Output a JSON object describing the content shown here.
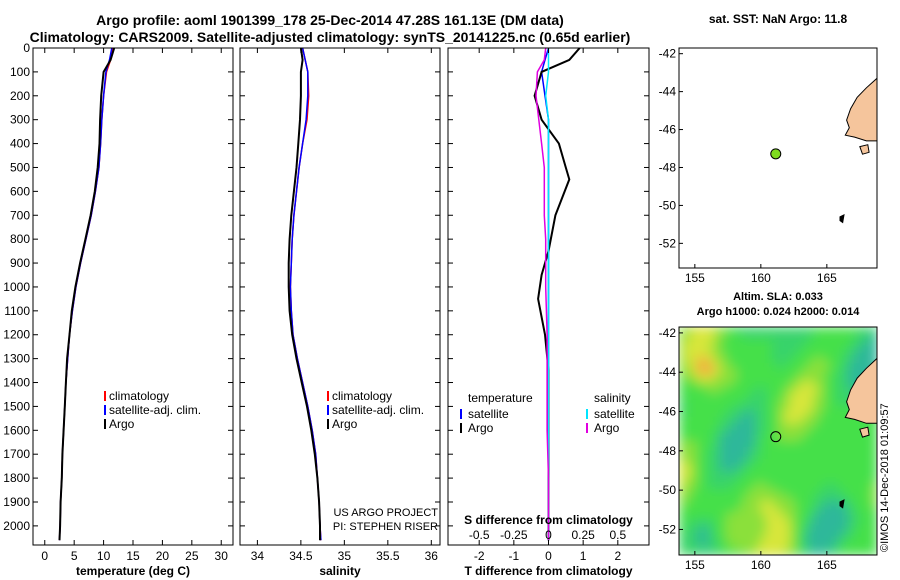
{
  "header": {
    "line1": "Argo profile: aoml 1901399_178 25-Dec-2014 47.28S 161.13E (DM data)",
    "line2": "Climatology: CARS2009. Satellite-adjusted climatology: synTS_20141225.nc (0.65d earlier)"
  },
  "sst_header": "sat. SST: NaN Argo: 11.8",
  "sla_header": {
    "line1": "Altim. SLA: 0.033",
    "line2": "Argo h1000: 0.024 h2000: 0.014"
  },
  "project": {
    "line1": "US ARGO PROJECT",
    "line2": "PI: STEPHEN RISER"
  },
  "stamp": "©IMOS 14-Dec-2018 01:09:57",
  "colors": {
    "climatology": "#ff0000",
    "satellite": "#0000ff",
    "argo": "#000000",
    "sal_sat": "#00e5ff",
    "sal_argo": "#e000e0",
    "land": "#f5c59c",
    "dot": "#7fdc1f"
  },
  "chart_data": [
    {
      "type": "line",
      "name": "temperature",
      "xlabel": "temperature (deg C)",
      "xlim": [
        -2,
        32
      ],
      "xticks": [
        "0",
        "5",
        "10",
        "15",
        "20",
        "25",
        "30"
      ],
      "ylim": [
        2080,
        0
      ],
      "yticks": [
        "0",
        "100",
        "200",
        "300",
        "400",
        "500",
        "600",
        "700",
        "800",
        "900",
        "1000",
        "1100",
        "1200",
        "1300",
        "1400",
        "1500",
        "1600",
        "1700",
        "1800",
        "1900",
        "2000"
      ],
      "legend": [
        "climatology",
        "satellite-adj. clim.",
        "Argo"
      ],
      "series": [
        {
          "name": "climatology",
          "color": "#ff0000",
          "points": [
            [
              11.5,
              0
            ],
            [
              11.2,
              50
            ],
            [
              10.5,
              100
            ],
            [
              10.0,
              200
            ],
            [
              9.7,
              300
            ],
            [
              9.5,
              400
            ],
            [
              9.2,
              500
            ],
            [
              8.6,
              600
            ],
            [
              7.9,
              700
            ],
            [
              7.0,
              800
            ],
            [
              6.1,
              900
            ],
            [
              5.3,
              1000
            ],
            [
              4.7,
              1100
            ],
            [
              4.2,
              1200
            ],
            [
              3.9,
              1300
            ],
            [
              3.6,
              1400
            ],
            [
              3.4,
              1500
            ],
            [
              3.2,
              1600
            ],
            [
              3.0,
              1700
            ],
            [
              2.9,
              1800
            ],
            [
              2.7,
              1900
            ],
            [
              2.6,
              2000
            ],
            [
              2.5,
              2060
            ]
          ]
        },
        {
          "name": "satellite-adj. clim.",
          "color": "#0000ff",
          "points": [
            [
              11.4,
              0
            ],
            [
              11.0,
              50
            ],
            [
              10.4,
              100
            ],
            [
              10.0,
              200
            ],
            [
              9.7,
              300
            ],
            [
              9.5,
              400
            ],
            [
              9.2,
              500
            ],
            [
              8.6,
              600
            ],
            [
              7.9,
              700
            ],
            [
              7.0,
              800
            ],
            [
              6.1,
              900
            ],
            [
              5.3,
              1000
            ],
            [
              4.7,
              1100
            ],
            [
              4.2,
              1200
            ],
            [
              3.9,
              1300
            ],
            [
              3.6,
              1400
            ],
            [
              3.4,
              1500
            ],
            [
              3.2,
              1600
            ],
            [
              3.0,
              1700
            ],
            [
              2.9,
              1800
            ],
            [
              2.7,
              1900
            ],
            [
              2.6,
              2000
            ],
            [
              2.5,
              2060
            ]
          ]
        },
        {
          "name": "Argo",
          "color": "#000000",
          "points": [
            [
              11.8,
              0
            ],
            [
              11.2,
              50
            ],
            [
              10.0,
              100
            ],
            [
              9.6,
              200
            ],
            [
              9.4,
              300
            ],
            [
              9.3,
              400
            ],
            [
              9.0,
              500
            ],
            [
              8.5,
              600
            ],
            [
              7.8,
              700
            ],
            [
              6.9,
              800
            ],
            [
              6.0,
              900
            ],
            [
              5.2,
              1000
            ],
            [
              4.6,
              1100
            ],
            [
              4.2,
              1200
            ],
            [
              3.8,
              1300
            ],
            [
              3.6,
              1400
            ],
            [
              3.4,
              1500
            ],
            [
              3.2,
              1600
            ],
            [
              3.0,
              1700
            ],
            [
              2.9,
              1800
            ],
            [
              2.7,
              1900
            ],
            [
              2.6,
              2000
            ],
            [
              2.5,
              2060
            ]
          ]
        }
      ]
    },
    {
      "type": "line",
      "name": "salinity",
      "xlabel": "salinity",
      "xlim": [
        33.8,
        36.1
      ],
      "xticks": [
        "34",
        "34.5",
        "35",
        "35.5",
        "36"
      ],
      "ylim": [
        2080,
        0
      ],
      "legend": [
        "climatology",
        "satellite-adj. clim.",
        "Argo"
      ],
      "series": [
        {
          "name": "climatology",
          "color": "#ff0000",
          "points": [
            [
              34.52,
              0
            ],
            [
              34.55,
              50
            ],
            [
              34.58,
              100
            ],
            [
              34.59,
              200
            ],
            [
              34.57,
              300
            ],
            [
              34.52,
              400
            ],
            [
              34.48,
              500
            ],
            [
              34.45,
              600
            ],
            [
              34.42,
              700
            ],
            [
              34.4,
              800
            ],
            [
              34.39,
              900
            ],
            [
              34.38,
              1000
            ],
            [
              34.39,
              1100
            ],
            [
              34.41,
              1200
            ],
            [
              34.46,
              1300
            ],
            [
              34.52,
              1400
            ],
            [
              34.58,
              1500
            ],
            [
              34.63,
              1600
            ],
            [
              34.67,
              1700
            ],
            [
              34.69,
              1800
            ],
            [
              34.71,
              1900
            ],
            [
              34.72,
              2000
            ],
            [
              34.73,
              2060
            ]
          ]
        },
        {
          "name": "satellite-adj. clim.",
          "color": "#0000ff",
          "points": [
            [
              34.52,
              0
            ],
            [
              34.55,
              50
            ],
            [
              34.58,
              100
            ],
            [
              34.58,
              200
            ],
            [
              34.56,
              300
            ],
            [
              34.52,
              400
            ],
            [
              34.48,
              500
            ],
            [
              34.45,
              600
            ],
            [
              34.42,
              700
            ],
            [
              34.4,
              800
            ],
            [
              34.39,
              900
            ],
            [
              34.38,
              1000
            ],
            [
              34.39,
              1100
            ],
            [
              34.41,
              1200
            ],
            [
              34.46,
              1300
            ],
            [
              34.52,
              1400
            ],
            [
              34.58,
              1500
            ],
            [
              34.63,
              1600
            ],
            [
              34.67,
              1700
            ],
            [
              34.69,
              1800
            ],
            [
              34.71,
              1900
            ],
            [
              34.72,
              2000
            ],
            [
              34.73,
              2060
            ]
          ]
        },
        {
          "name": "Argo",
          "color": "#000000",
          "points": [
            [
              34.5,
              0
            ],
            [
              34.52,
              50
            ],
            [
              34.5,
              100
            ],
            [
              34.5,
              200
            ],
            [
              34.49,
              300
            ],
            [
              34.47,
              400
            ],
            [
              34.45,
              500
            ],
            [
              34.42,
              600
            ],
            [
              34.39,
              700
            ],
            [
              34.37,
              800
            ],
            [
              34.36,
              900
            ],
            [
              34.36,
              1000
            ],
            [
              34.37,
              1100
            ],
            [
              34.4,
              1200
            ],
            [
              34.45,
              1300
            ],
            [
              34.51,
              1400
            ],
            [
              34.57,
              1500
            ],
            [
              34.62,
              1600
            ],
            [
              34.66,
              1700
            ],
            [
              34.69,
              1800
            ],
            [
              34.71,
              1900
            ],
            [
              34.72,
              2000
            ],
            [
              34.72,
              2060
            ]
          ]
        }
      ]
    },
    {
      "type": "line",
      "name": "difference",
      "xlabel": "T difference from climatology",
      "xlim": [
        -2.9,
        2.9
      ],
      "xticks": [
        "-2",
        "-1",
        "0",
        "1",
        "2"
      ],
      "top_label": "S difference from climatology",
      "top_ticks": [
        "-0.5",
        "-0.25",
        "0",
        "0.25",
        "0.5"
      ],
      "ylim": [
        2080,
        0
      ],
      "legend_left_title": "temperature",
      "legend_left": [
        "satellite",
        "Argo"
      ],
      "legend_right_title": "salinity",
      "legend_right": [
        "satellite",
        "Argo"
      ],
      "series": [
        {
          "name": "temperature satellite",
          "color": "#0000ff",
          "points": [
            [
              0.0,
              0
            ],
            [
              -0.1,
              50
            ],
            [
              -0.2,
              100
            ],
            [
              -0.1,
              200
            ],
            [
              0.0,
              300
            ],
            [
              0.0,
              400
            ],
            [
              0.0,
              500
            ],
            [
              0.0,
              600
            ],
            [
              0.0,
              700
            ],
            [
              0.0,
              800
            ],
            [
              0.0,
              900
            ],
            [
              0.0,
              1000
            ],
            [
              0.0,
              1200
            ],
            [
              0.0,
              1400
            ],
            [
              0.0,
              1600
            ],
            [
              0.0,
              1800
            ],
            [
              0.0,
              2000
            ],
            [
              0.0,
              2060
            ]
          ]
        },
        {
          "name": "temperature Argo",
          "color": "#000000",
          "points": [
            [
              0.9,
              0
            ],
            [
              0.6,
              50
            ],
            [
              -0.2,
              100
            ],
            [
              -0.4,
              200
            ],
            [
              -0.2,
              300
            ],
            [
              0.3,
              400
            ],
            [
              0.5,
              500
            ],
            [
              0.6,
              550
            ],
            [
              0.2,
              700
            ],
            [
              0.0,
              850
            ],
            [
              -0.2,
              950
            ],
            [
              -0.3,
              1050
            ],
            [
              -0.1,
              1200
            ],
            [
              0.0,
              1350
            ],
            [
              0.0,
              1500
            ],
            [
              0.0,
              1700
            ],
            [
              0.0,
              1900
            ],
            [
              0.0,
              2060
            ]
          ]
        },
        {
          "name": "salinity satellite",
          "color": "#00e5ff",
          "points": [
            [
              0.0,
              0
            ],
            [
              0.0,
              100
            ],
            [
              -0.02,
              200
            ],
            [
              0.0,
              300
            ],
            [
              0.0,
              500
            ],
            [
              0.0,
              800
            ],
            [
              0.0,
              1200
            ],
            [
              0.0,
              1600
            ],
            [
              0.0,
              2000
            ],
            [
              0.0,
              2060
            ]
          ]
        },
        {
          "name": "salinity Argo",
          "color": "#e000e0",
          "points": [
            [
              -0.02,
              0
            ],
            [
              -0.03,
              50
            ],
            [
              -0.08,
              100
            ],
            [
              -0.09,
              200
            ],
            [
              -0.07,
              300
            ],
            [
              -0.05,
              400
            ],
            [
              -0.03,
              500
            ],
            [
              -0.03,
              600
            ],
            [
              -0.03,
              700
            ],
            [
              -0.02,
              800
            ],
            [
              -0.02,
              1000
            ],
            [
              -0.01,
              1200
            ],
            [
              -0.01,
              1400
            ],
            [
              -0.01,
              1600
            ],
            [
              0.0,
              1800
            ],
            [
              0.0,
              2000
            ],
            [
              0.0,
              2060
            ]
          ]
        }
      ]
    },
    {
      "type": "map",
      "name": "sst-map",
      "title": "sat. SST: NaN Argo: 11.8",
      "xlim": [
        153.8,
        168.8
      ],
      "ylim": [
        -53.3,
        -41.7
      ],
      "xticks": [
        "155",
        "160",
        "165"
      ],
      "yticks": [
        "-42",
        "-44",
        "-46",
        "-48",
        "-50",
        "-52"
      ],
      "argo_position": {
        "lon": 161.13,
        "lat": -47.28
      }
    },
    {
      "type": "heatmap",
      "name": "sla-map",
      "title": "Altim. SLA: 0.033",
      "subtitle": "Argo h1000: 0.024 h2000: 0.014",
      "xlim": [
        153.8,
        168.8
      ],
      "ylim": [
        -53.3,
        -41.7
      ],
      "xticks": [
        "155",
        "160",
        "165"
      ],
      "yticks": [
        "-42",
        "-44",
        "-46",
        "-48",
        "-50",
        "-52"
      ],
      "argo_position": {
        "lon": 161.13,
        "lat": -47.28
      }
    }
  ]
}
